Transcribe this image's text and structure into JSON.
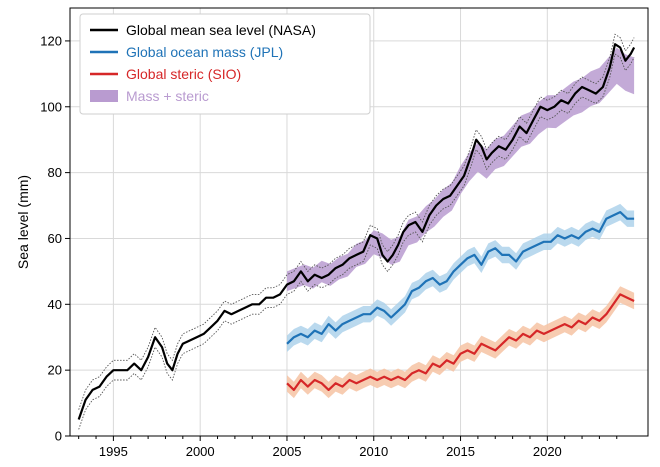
{
  "chart_data": {
    "type": "line",
    "ylabel": "Sea level (mm)",
    "xlabel": "",
    "xlim": [
      1992.5,
      2025.8
    ],
    "ylim": [
      0,
      130
    ],
    "xticks": [
      1995,
      2000,
      2005,
      2010,
      2015,
      2020
    ],
    "yticks": [
      0,
      20,
      40,
      60,
      80,
      100,
      120
    ],
    "grid": true,
    "legend_position": "top-left",
    "series": [
      {
        "name": "Global mean sea level (NASA)",
        "color": "#000000",
        "style": "solid line with dotted uncertainty envelope",
        "x": [
          1993.0,
          1993.4,
          1993.8,
          1994.2,
          1994.6,
          1995.0,
          1995.4,
          1995.8,
          1996.2,
          1996.6,
          1997.0,
          1997.4,
          1997.8,
          1998.1,
          1998.4,
          1998.7,
          1999.0,
          1999.4,
          1999.8,
          2000.2,
          2000.6,
          2001.0,
          2001.4,
          2001.8,
          2002.2,
          2002.6,
          2003.0,
          2003.4,
          2003.8,
          2004.2,
          2004.6,
          2005.0,
          2005.4,
          2005.8,
          2006.2,
          2006.6,
          2007.0,
          2007.4,
          2007.8,
          2008.2,
          2008.6,
          2009.0,
          2009.4,
          2009.8,
          2010.2,
          2010.5,
          2010.8,
          2011.1,
          2011.4,
          2011.7,
          2012.0,
          2012.4,
          2012.8,
          2013.2,
          2013.6,
          2014.0,
          2014.4,
          2014.8,
          2015.2,
          2015.6,
          2015.9,
          2016.2,
          2016.5,
          2016.8,
          2017.2,
          2017.6,
          2018.0,
          2018.4,
          2018.8,
          2019.2,
          2019.6,
          2020.0,
          2020.4,
          2020.8,
          2021.2,
          2021.6,
          2022.0,
          2022.4,
          2022.8,
          2023.2,
          2023.6,
          2023.9,
          2024.2,
          2024.5,
          2024.8,
          2025.0
        ],
        "values": [
          5,
          11,
          14,
          15,
          18,
          20,
          20,
          20,
          22,
          20,
          24,
          30,
          27,
          22,
          20,
          25,
          28,
          29,
          30,
          31,
          33,
          35,
          38,
          37,
          38,
          39,
          40,
          40,
          42,
          42,
          43,
          46,
          47,
          50,
          47,
          49,
          48,
          49,
          51,
          52,
          54,
          55,
          56,
          61,
          60,
          55,
          53,
          55,
          58,
          62,
          64,
          65,
          62,
          67,
          70,
          72,
          73,
          76,
          79,
          85,
          90,
          88,
          84,
          86,
          88,
          87,
          90,
          94,
          92,
          96,
          100,
          99,
          100,
          102,
          101,
          104,
          106,
          105,
          104,
          106,
          112,
          119,
          118,
          114,
          116,
          118
        ]
      },
      {
        "name": "Global ocean mass (JPL)",
        "color": "#1f73b7",
        "style": "solid line with shaded band",
        "x": [
          2005.0,
          2005.4,
          2005.8,
          2006.2,
          2006.6,
          2007.0,
          2007.4,
          2007.8,
          2008.2,
          2008.6,
          2009.0,
          2009.4,
          2009.8,
          2010.2,
          2010.6,
          2011.0,
          2011.4,
          2011.8,
          2012.2,
          2012.6,
          2013.0,
          2013.4,
          2013.8,
          2014.2,
          2014.6,
          2015.0,
          2015.4,
          2015.8,
          2016.2,
          2016.6,
          2017.0,
          2017.4,
          2017.8,
          2018.2,
          2018.6,
          2019.0,
          2019.4,
          2019.8,
          2020.2,
          2020.6,
          2021.0,
          2021.4,
          2021.8,
          2022.2,
          2022.6,
          2023.0,
          2023.4,
          2023.8,
          2024.2,
          2024.6,
          2025.0
        ],
        "values": [
          28,
          30,
          31,
          30,
          32,
          31,
          34,
          32,
          34,
          35,
          36,
          37,
          37,
          39,
          38,
          36,
          38,
          40,
          44,
          45,
          47,
          48,
          46,
          47,
          50,
          52,
          54,
          55,
          52,
          56,
          57,
          55,
          55,
          53,
          56,
          57,
          58,
          59,
          59,
          61,
          60,
          61,
          60,
          62,
          63,
          62,
          66,
          67,
          68,
          66,
          66
        ]
      },
      {
        "name": "Global steric (SIO)",
        "color": "#d62728",
        "style": "solid line with shaded band",
        "x": [
          2005.0,
          2005.4,
          2005.8,
          2006.2,
          2006.6,
          2007.0,
          2007.4,
          2007.8,
          2008.2,
          2008.6,
          2009.0,
          2009.4,
          2009.8,
          2010.2,
          2010.6,
          2011.0,
          2011.4,
          2011.8,
          2012.2,
          2012.6,
          2013.0,
          2013.4,
          2013.8,
          2014.2,
          2014.6,
          2015.0,
          2015.4,
          2015.8,
          2016.2,
          2016.6,
          2017.0,
          2017.4,
          2017.8,
          2018.2,
          2018.6,
          2019.0,
          2019.4,
          2019.8,
          2020.2,
          2020.6,
          2021.0,
          2021.4,
          2021.8,
          2022.2,
          2022.6,
          2023.0,
          2023.4,
          2023.8,
          2024.2,
          2024.6,
          2025.0
        ],
        "values": [
          16,
          14,
          17,
          15,
          17,
          16,
          14,
          16,
          15,
          17,
          16,
          17,
          18,
          17,
          18,
          17,
          18,
          17,
          19,
          20,
          19,
          22,
          21,
          23,
          22,
          25,
          26,
          25,
          28,
          27,
          26,
          28,
          30,
          29,
          31,
          30,
          32,
          31,
          32,
          33,
          34,
          33,
          35,
          34,
          36,
          35,
          37,
          40,
          43,
          42,
          41
        ]
      },
      {
        "name": "Mass + steric",
        "color": "#b99bd0",
        "style": "shaded band",
        "x": [
          2005.0,
          2005.5,
          2006.0,
          2006.5,
          2007.0,
          2007.5,
          2008.0,
          2008.5,
          2009.0,
          2009.5,
          2010.0,
          2010.5,
          2011.0,
          2011.5,
          2012.0,
          2012.5,
          2013.0,
          2013.5,
          2014.0,
          2014.5,
          2015.0,
          2015.5,
          2016.0,
          2016.5,
          2017.0,
          2017.5,
          2018.0,
          2018.5,
          2019.0,
          2019.5,
          2020.0,
          2020.5,
          2021.0,
          2021.5,
          2022.0,
          2022.5,
          2023.0,
          2023.5,
          2024.0,
          2024.5,
          2025.0
        ],
        "values": [
          47,
          48,
          49,
          48,
          50,
          49,
          51,
          52,
          55,
          56,
          59,
          58,
          56,
          57,
          62,
          63,
          66,
          68,
          71,
          73,
          78,
          82,
          85,
          83,
          86,
          87,
          90,
          93,
          94,
          97,
          99,
          99,
          101,
          103,
          104,
          106,
          107,
          110,
          113,
          111,
          110
        ]
      }
    ]
  }
}
